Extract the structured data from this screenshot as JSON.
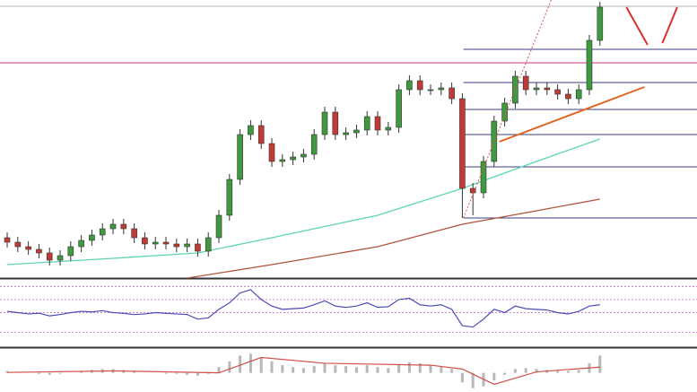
{
  "chart_data": [
    {
      "type": "candlestick",
      "xlim": [
        -0.68,
        65.17
      ],
      "ylim": [
        0,
        310
      ],
      "up_color": "#3f9a3f",
      "down_color": "#c23a34",
      "wick_color": "#333333",
      "open": [
        45,
        40,
        35,
        32,
        28,
        20,
        25,
        35,
        42,
        48,
        55,
        60,
        55,
        45,
        38,
        40,
        38,
        35,
        38,
        30,
        45,
        70,
        110,
        160,
        170,
        150,
        130,
        132,
        135,
        138,
        160,
        185,
        160,
        162,
        165,
        180,
        165,
        168,
        210,
        220,
        210,
        210,
        212,
        200,
        100,
        95,
        130,
        175,
        195,
        225,
        210,
        212,
        210,
        205,
        200,
        210,
        265
      ],
      "high": [
        51,
        46,
        41,
        38,
        34,
        31,
        41,
        48,
        54,
        61,
        66,
        66,
        61,
        51,
        46,
        46,
        44,
        44,
        44,
        51,
        76,
        116,
        166,
        176,
        176,
        156,
        138,
        141,
        144,
        166,
        191,
        191,
        168,
        171,
        186,
        186,
        174,
        216,
        226,
        226,
        216,
        218,
        218,
        206,
        106,
        136,
        181,
        201,
        231,
        231,
        218,
        218,
        216,
        211,
        216,
        271,
        308
      ],
      "low": [
        34,
        29,
        26,
        22,
        14,
        14,
        19,
        29,
        36,
        42,
        49,
        49,
        39,
        32,
        32,
        32,
        29,
        29,
        24,
        24,
        39,
        64,
        104,
        154,
        144,
        124,
        124,
        126,
        129,
        132,
        154,
        154,
        154,
        156,
        159,
        159,
        159,
        162,
        204,
        204,
        204,
        204,
        194,
        67,
        70,
        89,
        124,
        169,
        189,
        204,
        204,
        204,
        199,
        194,
        194,
        204,
        259
      ],
      "close": [
        40,
        35,
        32,
        28,
        20,
        25,
        35,
        42,
        48,
        55,
        60,
        55,
        45,
        38,
        40,
        38,
        35,
        38,
        30,
        45,
        70,
        110,
        160,
        170,
        150,
        130,
        132,
        135,
        138,
        160,
        185,
        160,
        162,
        165,
        180,
        165,
        168,
        210,
        220,
        210,
        210,
        212,
        200,
        100,
        95,
        130,
        175,
        195,
        225,
        210,
        212,
        210,
        205,
        200,
        210,
        265,
        302
      ],
      "overlays": [
        {
          "color": "#5fd6b0",
          "x": [
            0,
            10,
            18,
            25,
            35,
            43,
            50,
            56
          ],
          "values": [
            15,
            22,
            28,
            45,
            70,
            100,
            130,
            155
          ]
        },
        {
          "color": "#b0553f",
          "x": [
            17,
            25,
            35,
            43,
            50,
            56
          ],
          "values": [
            0,
            15,
            35,
            60,
            75,
            88
          ]
        }
      ],
      "levels": [
        {
          "value": 303,
          "color": "#b5b5b5",
          "from": -0.68
        },
        {
          "value": 240,
          "color": "#cc2f7e",
          "from": -0.68
        },
        {
          "value": 255,
          "color": "#3d3d8a",
          "from": 43.1
        },
        {
          "value": 218,
          "color": "#3d3d8a",
          "from": 43.1
        },
        {
          "value": 188,
          "color": "#3d3d8a",
          "from": 43.1
        },
        {
          "value": 160,
          "color": "#3d3d8a",
          "from": 43.1
        },
        {
          "value": 124,
          "color": "#3d3d8a",
          "from": 43.1
        },
        {
          "value": 67,
          "color": "#3d3d8a",
          "from": 43.1
        }
      ],
      "trendlines": [
        {
          "color": "#e0661f",
          "dashed": false,
          "x": [
            46.5,
            60.2
          ],
          "values": [
            152,
            213
          ]
        },
        {
          "color": "#e05050",
          "dashed": true,
          "x": [
            43.1,
            51.4
          ],
          "values": [
            67,
            310
          ]
        },
        {
          "color": "#d9302c",
          "dashed": false,
          "x": [
            58.5,
            60.5
          ],
          "values": [
            302,
            260
          ]
        },
        {
          "color": "#d9302c",
          "dashed": false,
          "x": [
            61.9,
            63.3
          ],
          "values": [
            262,
            302
          ]
        }
      ]
    },
    {
      "type": "line",
      "xlim": [
        -0.68,
        65.17
      ],
      "ylim": [
        0,
        100
      ],
      "color": "#4a4ab8",
      "levels": [
        20,
        50,
        70,
        90
      ],
      "level_color": "#c060c0",
      "values": [
        52,
        50,
        48,
        49,
        45,
        47,
        50,
        52,
        51,
        53,
        50,
        49,
        47,
        48,
        50,
        49,
        48,
        47,
        40,
        42,
        55,
        65,
        80,
        85,
        70,
        60,
        55,
        56,
        57,
        62,
        68,
        60,
        58,
        60,
        65,
        58,
        59,
        70,
        72,
        62,
        60,
        62,
        55,
        30,
        28,
        40,
        55,
        50,
        60,
        56,
        55,
        54,
        50,
        48,
        52,
        60,
        62
      ]
    },
    {
      "type": "bar",
      "xlim": [
        -0.68,
        65.17
      ],
      "ylim": [
        -1,
        1.2
      ],
      "color": "#b8b8b8",
      "signal_color": "#d0504a",
      "values": [
        0.1,
        0.05,
        0,
        -0.05,
        -0.1,
        -0.05,
        0,
        0.1,
        0.15,
        0.2,
        0.2,
        0.15,
        0.1,
        0,
        0,
        -0.05,
        -0.05,
        -0.1,
        -0.15,
        -0.05,
        0.3,
        0.6,
        0.9,
        1.0,
        0.8,
        0.6,
        0.4,
        0.3,
        0.25,
        0.35,
        0.5,
        0.4,
        0.35,
        0.3,
        0.4,
        0.3,
        0.25,
        0.45,
        0.55,
        0.5,
        0.4,
        0.3,
        0.2,
        -0.5,
        -0.8,
        -0.7,
        -0.4,
        -0.1,
        0.2,
        0.25,
        0.2,
        0.15,
        0.1,
        0.1,
        0.15,
        0.5,
        0.9
      ],
      "signal": {
        "x": [
          0,
          10,
          20,
          24,
          30,
          40,
          43,
          46,
          50,
          56
        ],
        "values": [
          0.02,
          0.1,
          0,
          0.8,
          0.5,
          0.4,
          0.2,
          -0.6,
          0.05,
          0.3
        ]
      }
    }
  ]
}
